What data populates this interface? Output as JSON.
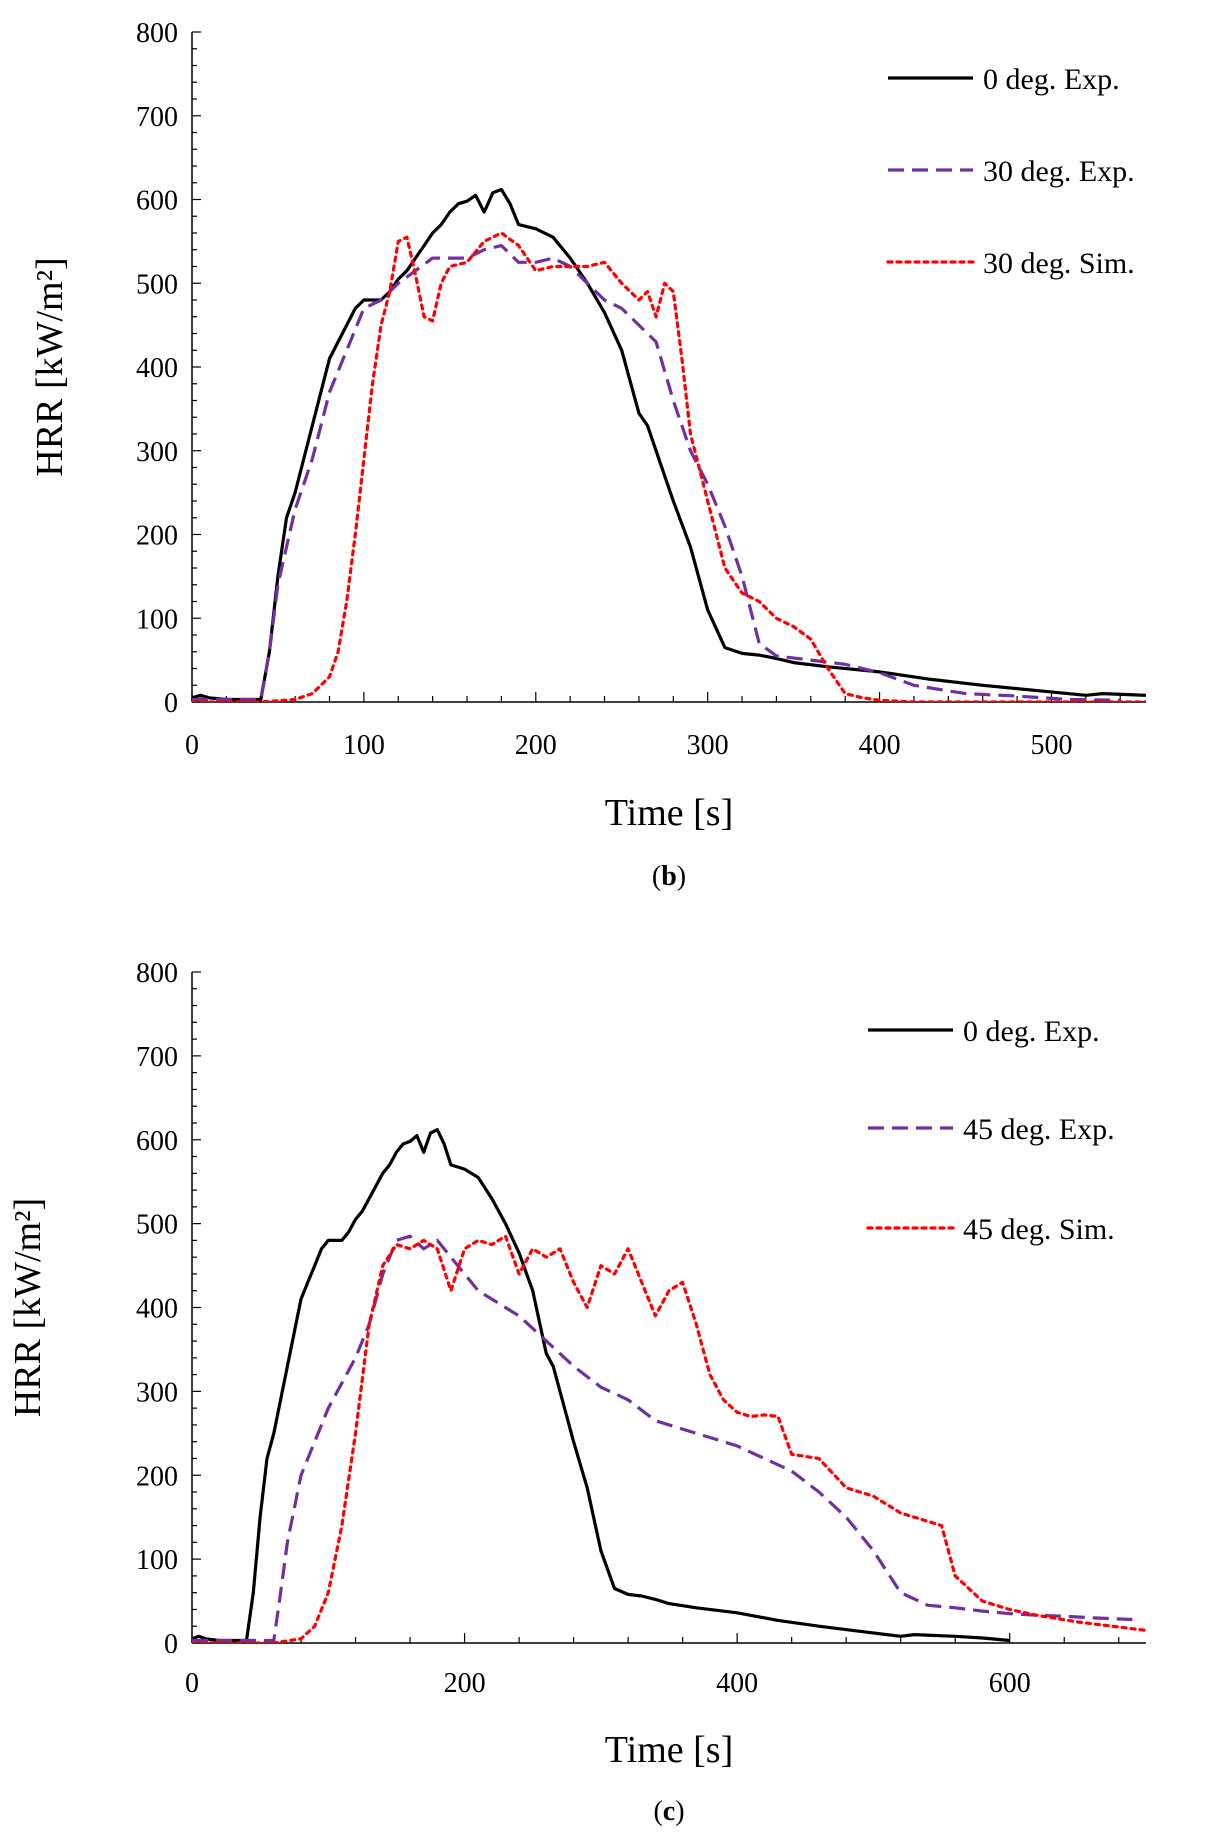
{
  "chart_data": [
    {
      "type": "line",
      "panel_label": "b",
      "xlabel": "Time [s]",
      "ylabel": "HRR [kW/m²]",
      "xlim": [
        0,
        555
      ],
      "ylim": [
        0,
        800
      ],
      "xticks": [
        0,
        100,
        200,
        300,
        400,
        500
      ],
      "yticks": [
        0,
        100,
        200,
        300,
        400,
        500,
        600,
        700,
        800
      ],
      "grid": false,
      "legend_position": "top-right",
      "series": [
        {
          "name": "0 deg. Exp.",
          "style": "solid",
          "color": "#000000",
          "x": [
            0,
            5,
            10,
            20,
            30,
            40,
            45,
            50,
            55,
            60,
            65,
            70,
            75,
            80,
            85,
            90,
            95,
            100,
            105,
            110,
            115,
            120,
            125,
            130,
            135,
            140,
            145,
            150,
            155,
            160,
            165,
            170,
            175,
            180,
            185,
            190,
            200,
            210,
            220,
            230,
            240,
            250,
            260,
            265,
            270,
            280,
            290,
            300,
            310,
            320,
            330,
            340,
            350,
            370,
            400,
            430,
            460,
            490,
            520,
            530,
            555
          ],
          "y": [
            5,
            8,
            5,
            3,
            3,
            3,
            60,
            150,
            220,
            250,
            290,
            330,
            370,
            410,
            430,
            450,
            470,
            480,
            480,
            480,
            490,
            505,
            515,
            530,
            545,
            560,
            570,
            585,
            595,
            598,
            605,
            585,
            608,
            612,
            595,
            570,
            565,
            555,
            530,
            500,
            465,
            420,
            345,
            330,
            300,
            240,
            185,
            110,
            65,
            58,
            56,
            52,
            47,
            42,
            36,
            27,
            20,
            14,
            8,
            10,
            8
          ]
        },
        {
          "name": "30 deg. Exp.",
          "style": "dashed",
          "color": "#7030a0",
          "x": [
            0,
            10,
            20,
            30,
            40,
            45,
            50,
            60,
            70,
            80,
            90,
            100,
            110,
            120,
            130,
            140,
            150,
            160,
            170,
            180,
            190,
            200,
            210,
            220,
            230,
            240,
            250,
            260,
            270,
            280,
            290,
            300,
            310,
            320,
            330,
            340,
            360,
            380,
            400,
            420,
            450,
            480,
            510,
            540
          ],
          "y": [
            3,
            3,
            3,
            3,
            3,
            60,
            140,
            230,
            290,
            370,
            420,
            470,
            480,
            500,
            515,
            530,
            530,
            530,
            540,
            545,
            525,
            525,
            530,
            520,
            500,
            480,
            470,
            450,
            430,
            360,
            300,
            260,
            210,
            150,
            70,
            55,
            50,
            45,
            35,
            20,
            10,
            7,
            3,
            2
          ]
        },
        {
          "name": "30 deg. Sim.",
          "style": "dotted",
          "color": "#ff0000",
          "x": [
            0,
            40,
            60,
            70,
            80,
            85,
            90,
            95,
            100,
            105,
            110,
            115,
            120,
            125,
            130,
            135,
            140,
            145,
            150,
            160,
            170,
            180,
            190,
            200,
            210,
            220,
            230,
            240,
            250,
            260,
            265,
            270,
            275,
            280,
            285,
            290,
            300,
            310,
            320,
            330,
            340,
            350,
            360,
            370,
            380,
            390,
            400,
            420,
            460,
            500,
            555
          ],
          "y": [
            0,
            0,
            3,
            10,
            30,
            60,
            120,
            200,
            290,
            380,
            450,
            490,
            550,
            555,
            510,
            460,
            455,
            500,
            520,
            525,
            550,
            560,
            545,
            515,
            520,
            520,
            520,
            525,
            500,
            480,
            490,
            460,
            500,
            490,
            410,
            320,
            240,
            160,
            130,
            120,
            100,
            90,
            75,
            40,
            10,
            5,
            2,
            0,
            0,
            0,
            0
          ]
        }
      ]
    },
    {
      "type": "line",
      "panel_label": "c",
      "xlabel": "Time [s]",
      "ylabel": "HRR [kW/m²]",
      "xlim": [
        0,
        700
      ],
      "ylim": [
        0,
        800
      ],
      "xticks": [
        0,
        200,
        400,
        600
      ],
      "yticks": [
        0,
        100,
        200,
        300,
        400,
        500,
        600,
        700,
        800
      ],
      "grid": false,
      "legend_position": "top-right",
      "series": [
        {
          "name": "0 deg. Exp.",
          "style": "solid",
          "color": "#000000",
          "x": [
            0,
            5,
            10,
            20,
            30,
            40,
            45,
            50,
            55,
            60,
            65,
            70,
            75,
            80,
            85,
            90,
            95,
            100,
            105,
            110,
            115,
            120,
            125,
            130,
            135,
            140,
            145,
            150,
            155,
            160,
            165,
            170,
            175,
            180,
            185,
            190,
            200,
            210,
            220,
            230,
            240,
            250,
            260,
            265,
            270,
            280,
            290,
            300,
            310,
            320,
            330,
            340,
            350,
            370,
            400,
            430,
            460,
            490,
            520,
            530,
            560,
            580,
            600
          ],
          "y": [
            5,
            8,
            5,
            3,
            3,
            3,
            60,
            150,
            220,
            250,
            290,
            330,
            370,
            410,
            430,
            450,
            470,
            480,
            480,
            480,
            490,
            505,
            515,
            530,
            545,
            560,
            570,
            585,
            595,
            598,
            605,
            585,
            608,
            612,
            595,
            570,
            565,
            555,
            530,
            500,
            465,
            420,
            345,
            330,
            300,
            240,
            185,
            110,
            65,
            58,
            56,
            52,
            47,
            42,
            36,
            27,
            20,
            14,
            8,
            10,
            8,
            6,
            3
          ]
        },
        {
          "name": "45 deg. Exp.",
          "style": "dashed",
          "color": "#7030a0",
          "x": [
            0,
            20,
            40,
            60,
            65,
            70,
            80,
            90,
            100,
            110,
            120,
            130,
            140,
            150,
            160,
            170,
            180,
            190,
            200,
            210,
            220,
            240,
            260,
            280,
            300,
            320,
            340,
            360,
            380,
            400,
            420,
            440,
            460,
            480,
            500,
            520,
            540,
            560,
            580,
            600,
            620,
            640,
            660,
            690
          ],
          "y": [
            3,
            3,
            3,
            3,
            60,
            120,
            200,
            240,
            280,
            310,
            340,
            380,
            440,
            480,
            485,
            470,
            480,
            460,
            440,
            420,
            410,
            390,
            360,
            330,
            305,
            290,
            265,
            255,
            245,
            235,
            220,
            205,
            180,
            150,
            110,
            60,
            45,
            42,
            38,
            35,
            33,
            32,
            30,
            28
          ]
        },
        {
          "name": "45 deg. Sim.",
          "style": "dotted",
          "color": "#ff0000",
          "x": [
            0,
            60,
            80,
            90,
            100,
            110,
            120,
            130,
            140,
            150,
            160,
            170,
            180,
            190,
            200,
            210,
            220,
            230,
            240,
            250,
            260,
            270,
            280,
            290,
            300,
            310,
            320,
            330,
            340,
            350,
            360,
            370,
            380,
            390,
            400,
            410,
            420,
            430,
            440,
            460,
            480,
            500,
            520,
            540,
            550,
            560,
            570,
            580,
            600,
            620,
            650,
            700
          ],
          "y": [
            0,
            0,
            5,
            20,
            60,
            140,
            250,
            380,
            450,
            475,
            470,
            480,
            470,
            420,
            470,
            480,
            475,
            485,
            440,
            470,
            460,
            470,
            430,
            400,
            450,
            440,
            470,
            430,
            390,
            420,
            430,
            380,
            320,
            290,
            275,
            270,
            272,
            270,
            225,
            220,
            185,
            175,
            155,
            145,
            140,
            80,
            65,
            50,
            40,
            33,
            25,
            15
          ]
        }
      ]
    }
  ]
}
